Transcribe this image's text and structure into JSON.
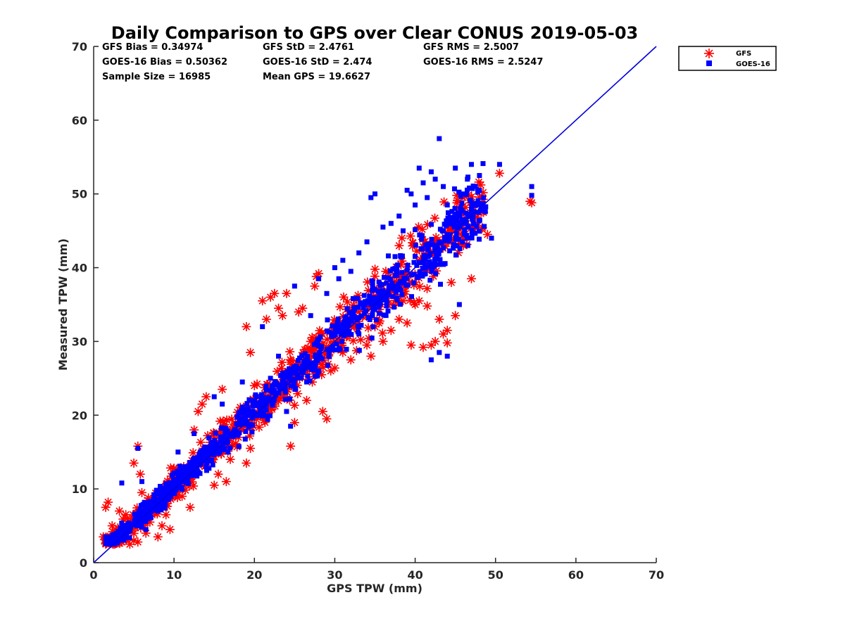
{
  "chart_data": {
    "type": "scatter",
    "title": "Daily Comparison to GPS over Clear CONUS 2019-05-03",
    "xlabel": "GPS TPW (mm)",
    "ylabel": "Measured TPW (mm)",
    "xlim": [
      0,
      70
    ],
    "ylim": [
      0,
      70
    ],
    "xticks": [
      "0",
      "10",
      "20",
      "30",
      "40",
      "50",
      "60",
      "70"
    ],
    "yticks": [
      "0",
      "10",
      "20",
      "30",
      "40",
      "50",
      "60",
      "70"
    ],
    "grid": false,
    "legend_position": "outside-top-right",
    "annotations": [
      [
        "GFS Bias = 0.34974",
        "GFS StD = 2.4761",
        "GFS RMS = 2.5007"
      ],
      [
        "GOES-16 Bias = 0.50362",
        "GOES-16 StD = 2.474",
        "GOES-16 RMS = 2.5247"
      ],
      [
        "Sample Size = 16985",
        "Mean GPS = 19.6627",
        ""
      ]
    ],
    "reference_line": {
      "name": "1:1 line",
      "x": [
        0,
        70
      ],
      "y": [
        0,
        70
      ],
      "color": "#0000dd"
    },
    "series": [
      {
        "name": "GFS",
        "marker": "asterisk",
        "color": "#ff0000",
        "points": [
          [
            1.2,
            3.5
          ],
          [
            1.5,
            7.5
          ],
          [
            1.8,
            8.2
          ],
          [
            2.0,
            3.0
          ],
          [
            2.3,
            5.0
          ],
          [
            3.0,
            4.2
          ],
          [
            3.5,
            2.8
          ],
          [
            4.0,
            3.2
          ],
          [
            4.5,
            2.5
          ],
          [
            5.0,
            3.0
          ],
          [
            5.5,
            2.8
          ],
          [
            4.0,
            6.5
          ],
          [
            3.2,
            7.0
          ],
          [
            5.5,
            15.8
          ],
          [
            5.0,
            13.5
          ],
          [
            5.8,
            12.0
          ],
          [
            6.0,
            9.5
          ],
          [
            6.5,
            4.0
          ],
          [
            7.0,
            5.5
          ],
          [
            8.0,
            3.5
          ],
          [
            8.5,
            5.0
          ],
          [
            9.0,
            6.5
          ],
          [
            9.5,
            4.5
          ],
          [
            10.0,
            12.8
          ],
          [
            11.0,
            9.0
          ],
          [
            12.0,
            7.5
          ],
          [
            12.5,
            18.0
          ],
          [
            13.0,
            20.5
          ],
          [
            13.5,
            21.5
          ],
          [
            14.0,
            22.5
          ],
          [
            14.0,
            15.0
          ],
          [
            15.0,
            10.5
          ],
          [
            15.5,
            12.0
          ],
          [
            16.0,
            23.5
          ],
          [
            16.5,
            11.0
          ],
          [
            17.0,
            14.0
          ],
          [
            18.0,
            17.0
          ],
          [
            19.0,
            13.5
          ],
          [
            19.5,
            15.5
          ],
          [
            19.0,
            32.0
          ],
          [
            19.5,
            28.5
          ],
          [
            20.0,
            24.0
          ],
          [
            20.5,
            20.0
          ],
          [
            21.0,
            35.5
          ],
          [
            21.5,
            33.0
          ],
          [
            22.0,
            36.0
          ],
          [
            22.5,
            36.5
          ],
          [
            23.0,
            34.5
          ],
          [
            23.5,
            33.5
          ],
          [
            24.0,
            36.5
          ],
          [
            24.5,
            15.8
          ],
          [
            25.0,
            19.0
          ],
          [
            25.5,
            34.0
          ],
          [
            26.0,
            34.5
          ],
          [
            26.5,
            22.0
          ],
          [
            27.0,
            30.0
          ],
          [
            27.5,
            37.5
          ],
          [
            27.7,
            38.8
          ],
          [
            28.0,
            39.2
          ],
          [
            28.5,
            20.5
          ],
          [
            29.0,
            19.5
          ],
          [
            29.5,
            26.0
          ],
          [
            30.0,
            32.5
          ],
          [
            31.0,
            28.5
          ],
          [
            32.0,
            27.5
          ],
          [
            33.0,
            34.0
          ],
          [
            34.0,
            29.5
          ],
          [
            34.5,
            28.0
          ],
          [
            35.0,
            32.0
          ],
          [
            35.5,
            32.5
          ],
          [
            36.0,
            30.0
          ],
          [
            36.5,
            35.0
          ],
          [
            37.0,
            31.5
          ],
          [
            38.0,
            33.0
          ],
          [
            39.0,
            32.5
          ],
          [
            39.5,
            29.5
          ],
          [
            40.0,
            35.0
          ],
          [
            40.5,
            35.5
          ],
          [
            41.0,
            29.2
          ],
          [
            41.5,
            34.8
          ],
          [
            42.0,
            29.5
          ],
          [
            42.5,
            30.0
          ],
          [
            43.0,
            33.0
          ],
          [
            43.5,
            31.0
          ],
          [
            44.0,
            29.8
          ],
          [
            44.0,
            31.5
          ],
          [
            45.0,
            33.5
          ],
          [
            46.0,
            43.0
          ],
          [
            47.0,
            38.5
          ],
          [
            47.5,
            45.5
          ],
          [
            48.0,
            48.5
          ],
          [
            48.5,
            47.5
          ],
          [
            49.0,
            44.5
          ],
          [
            50.5,
            52.8
          ],
          [
            54.3,
            49.0
          ],
          [
            54.5,
            48.8
          ],
          [
            44.5,
            38.0
          ],
          [
            42.0,
            40.5
          ],
          [
            38.5,
            35.5
          ],
          [
            36.0,
            36.5
          ]
        ]
      },
      {
        "name": "GOES-16",
        "marker": "square",
        "color": "#0000ff",
        "points": [
          [
            3.5,
            10.8
          ],
          [
            5.5,
            15.5
          ],
          [
            6.0,
            11.0
          ],
          [
            10.5,
            15.0
          ],
          [
            12.5,
            17.5
          ],
          [
            15.0,
            22.5
          ],
          [
            16.0,
            21.5
          ],
          [
            18.5,
            24.5
          ],
          [
            19.0,
            19.0
          ],
          [
            21.0,
            32.0
          ],
          [
            22.0,
            25.0
          ],
          [
            23.0,
            28.0
          ],
          [
            24.0,
            20.5
          ],
          [
            24.5,
            18.5
          ],
          [
            25.0,
            37.5
          ],
          [
            26.0,
            26.5
          ],
          [
            27.0,
            33.5
          ],
          [
            28.0,
            38.5
          ],
          [
            29.0,
            36.5
          ],
          [
            30.0,
            40.0
          ],
          [
            30.5,
            38.5
          ],
          [
            31.0,
            41.0
          ],
          [
            32.0,
            39.5
          ],
          [
            33.0,
            42.0
          ],
          [
            34.0,
            43.5
          ],
          [
            34.5,
            49.5
          ],
          [
            35.0,
            50.0
          ],
          [
            36.0,
            45.5
          ],
          [
            37.0,
            46.0
          ],
          [
            37.5,
            41.5
          ],
          [
            38.0,
            47.0
          ],
          [
            38.5,
            45.0
          ],
          [
            39.0,
            50.5
          ],
          [
            39.5,
            50.0
          ],
          [
            40.0,
            48.5
          ],
          [
            40.5,
            53.5
          ],
          [
            41.0,
            51.5
          ],
          [
            41.5,
            49.5
          ],
          [
            42.0,
            53.0
          ],
          [
            42.5,
            52.0
          ],
          [
            43.0,
            57.5
          ],
          [
            43.5,
            51.0
          ],
          [
            44.0,
            48.5
          ],
          [
            45.0,
            53.5
          ],
          [
            46.0,
            50.0
          ],
          [
            46.5,
            52.0
          ],
          [
            47.0,
            54.0
          ],
          [
            47.5,
            51.0
          ],
          [
            48.0,
            52.5
          ],
          [
            48.5,
            49.5
          ],
          [
            49.5,
            44.0
          ],
          [
            50.5,
            54.0
          ],
          [
            54.5,
            51.0
          ],
          [
            54.5,
            49.8
          ],
          [
            42.0,
            27.5
          ],
          [
            43.0,
            28.5
          ],
          [
            44.0,
            28.0
          ],
          [
            45.5,
            35.0
          ],
          [
            46.5,
            44.0
          ],
          [
            33.0,
            31.0
          ],
          [
            28.0,
            26.0
          ],
          [
            26.5,
            24.5
          ],
          [
            14.0,
            13.0
          ],
          [
            8.0,
            7.0
          ],
          [
            6.5,
            4.5
          ],
          [
            4.0,
            3.5
          ]
        ]
      }
    ]
  }
}
